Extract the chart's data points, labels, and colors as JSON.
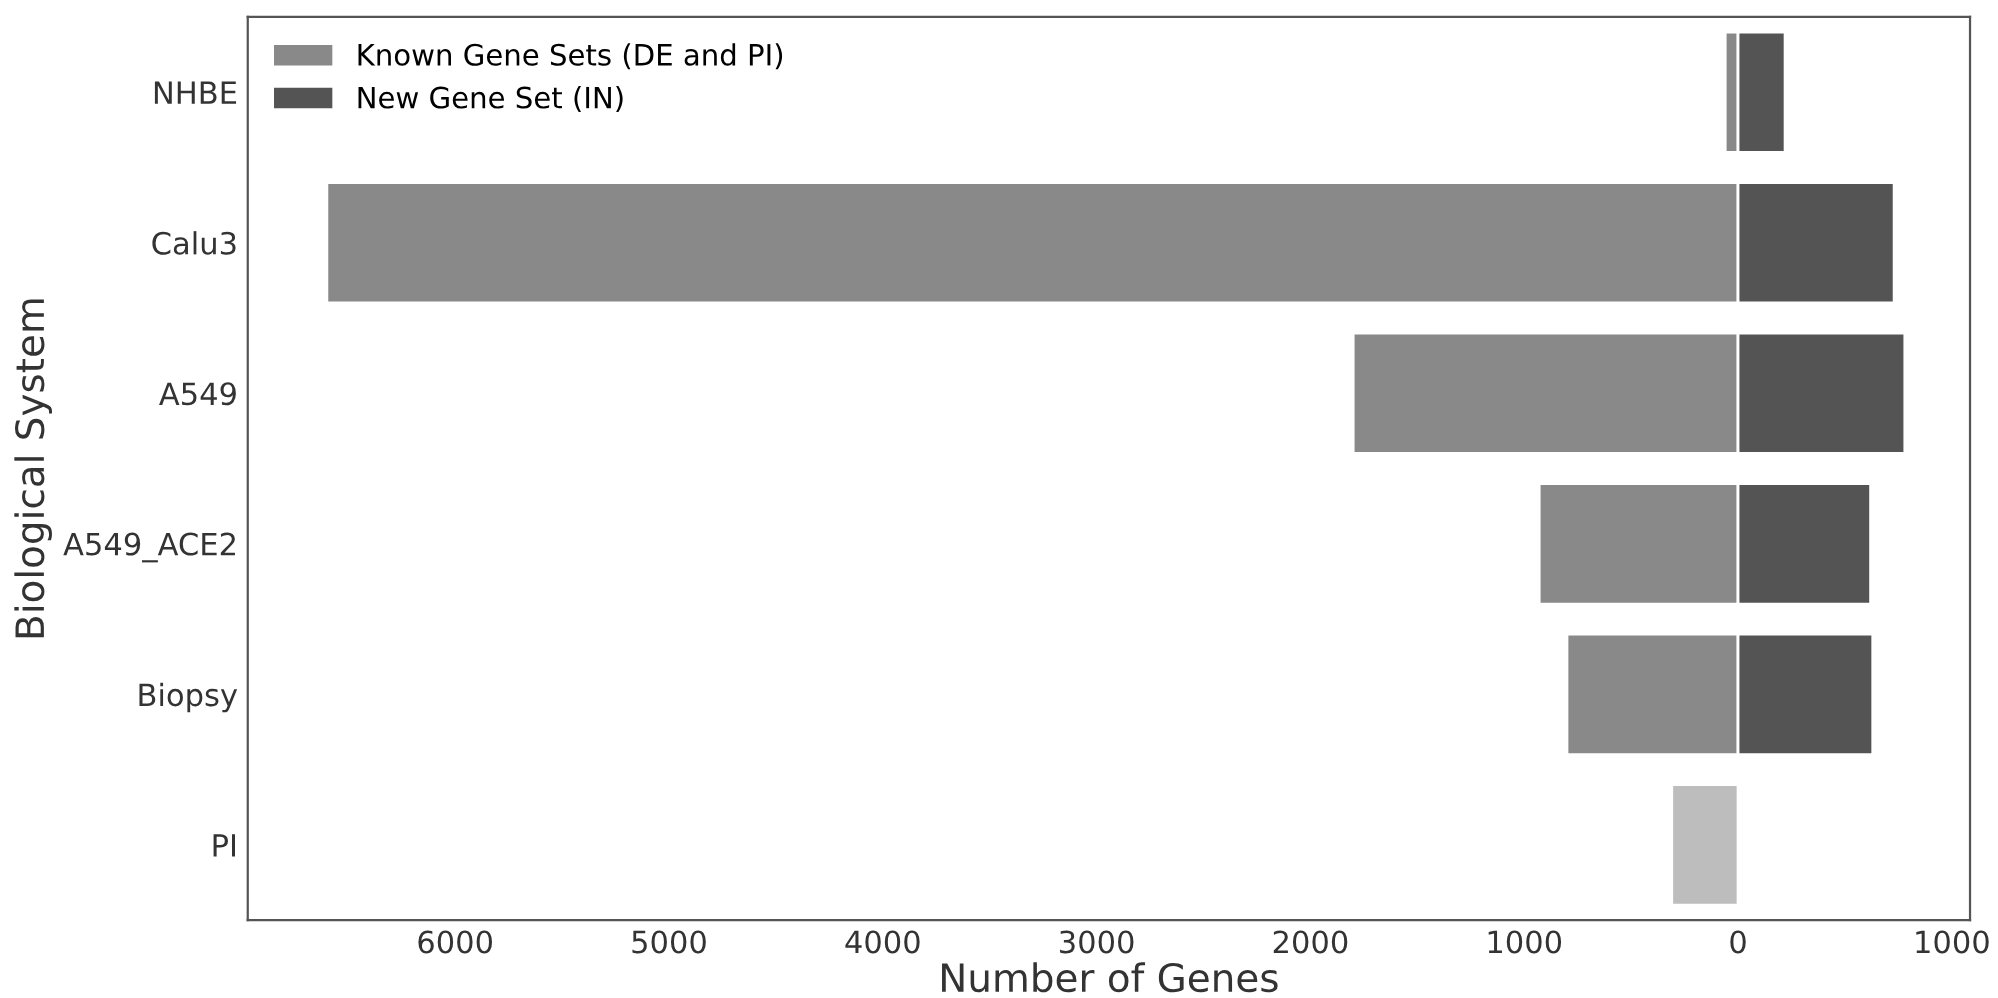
{
  "chart_data": {
    "type": "bar",
    "stacked": true,
    "orientation": "horizontal",
    "xlabel": "Number of Genes",
    "ylabel": "Biological System",
    "categories": [
      "NHBE",
      "Calu3",
      "A549",
      "A549_ACE2",
      "Biopsy",
      "PI"
    ],
    "series": [
      {
        "name": "Known Gene Sets (DE and PI)",
        "color": "#898989",
        "colors": [
          "#898989",
          "#898989",
          "#898989",
          "#898989",
          "#898989",
          "#bdbdbd"
        ],
        "values": [
          -60,
          -6600,
          -1800,
          -930,
          -800,
          -310
        ]
      },
      {
        "name": "New Gene Set (IN)",
        "color": "#545454",
        "values": [
          220,
          730,
          780,
          620,
          630,
          null
        ]
      }
    ],
    "xlim": [
      -6970,
      1085
    ],
    "xticks": [
      {
        "value": -6000,
        "label": "6000"
      },
      {
        "value": -5000,
        "label": "5000"
      },
      {
        "value": -4000,
        "label": "4000"
      },
      {
        "value": -3000,
        "label": "3000"
      },
      {
        "value": -2000,
        "label": "2000"
      },
      {
        "value": -1000,
        "label": "1000"
      },
      0,
      1000
    ],
    "legend": "top left",
    "grid": false
  }
}
